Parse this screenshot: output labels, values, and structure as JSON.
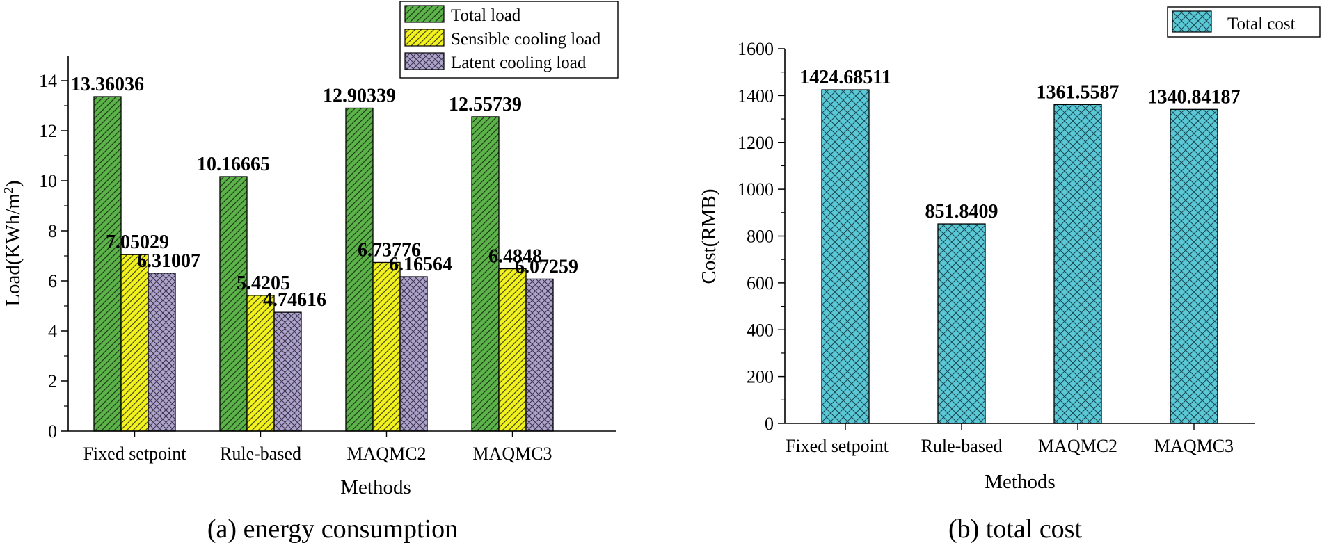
{
  "chart_data": [
    {
      "type": "bar",
      "caption": "(a)  energy consumption",
      "xlabel": "Methods",
      "ylabel": "Load(KWh/m²)",
      "ylim": [
        0,
        15
      ],
      "yticks": [
        0,
        2,
        4,
        6,
        8,
        10,
        12,
        14
      ],
      "categories": [
        "Fixed setpoint",
        "Rule-based",
        "MAQMC2",
        "MAQMC3"
      ],
      "series": [
        {
          "name": "Total load",
          "color": "#5cb34a",
          "pattern": "diag-right",
          "values": [
            13.36036,
            10.16665,
            12.90339,
            12.55739
          ],
          "labels": [
            "13.36036",
            "10.16665",
            "12.90339",
            "12.55739"
          ]
        },
        {
          "name": "Sensible cooling load",
          "color": "#f2f21f",
          "pattern": "diag-right",
          "values": [
            7.05029,
            5.4205,
            6.73776,
            6.4848
          ],
          "labels": [
            "7.05029",
            "5.4205",
            "6.73776",
            "6.4848"
          ]
        },
        {
          "name": "Latent cooling load",
          "color": "#aea3c9",
          "pattern": "cross",
          "values": [
            6.31007,
            4.74616,
            6.16564,
            6.07259
          ],
          "labels": [
            "6.31007",
            "4.74616",
            "6.16564",
            "6.07259"
          ]
        }
      ],
      "legend": "top-right"
    },
    {
      "type": "bar",
      "caption": "(b)  total cost",
      "xlabel": "Methods",
      "ylabel": "Cost(RMB)",
      "ylim": [
        0,
        1600
      ],
      "yticks": [
        0,
        200,
        400,
        600,
        800,
        1000,
        1200,
        1400,
        1600
      ],
      "categories": [
        "Fixed setpoint",
        "Rule-based",
        "MAQMC2",
        "MAQMC3"
      ],
      "series": [
        {
          "name": "Total cost",
          "color": "#5bc8d6",
          "pattern": "cross",
          "values": [
            1424.68511,
            851.8409,
            1361.5587,
            1340.84187
          ],
          "labels": [
            "1424.68511",
            "851.8409",
            "1361.5587",
            "1340.84187"
          ]
        }
      ],
      "legend": "top-right"
    }
  ]
}
